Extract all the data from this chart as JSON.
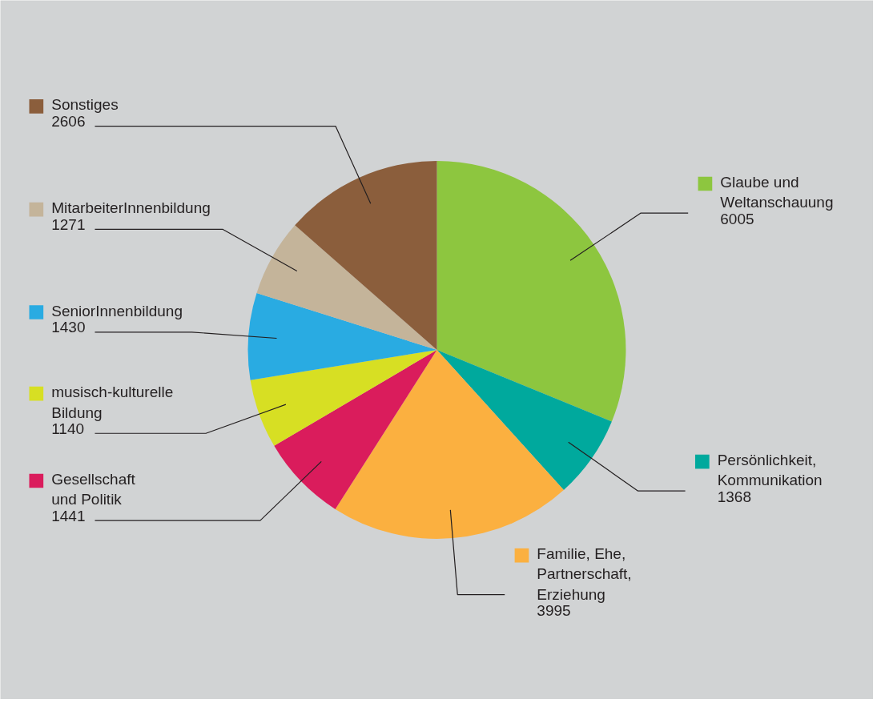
{
  "chart_data": {
    "type": "pie",
    "categories": [
      "Glaube und Weltanschauung",
      "Persönlichkeit, Kommunikation",
      "Familie, Ehe, Partnerschaft, Erziehung",
      "Gesellschaft und Politik",
      "musisch-kulturelle Bildung",
      "SeniorInnenbildung",
      "MitarbeiterInnenbildung",
      "Sonstiges"
    ],
    "values": [
      6005,
      1368,
      3995,
      1441,
      1140,
      1430,
      1271,
      2606
    ],
    "colors": [
      "#8dc63f",
      "#00a99d",
      "#fbb040",
      "#da1c5c",
      "#d7df23",
      "#29abe2",
      "#c4b49a",
      "#8b5e3c"
    ],
    "data_labels": true,
    "legend": "bottom left"
  }
}
